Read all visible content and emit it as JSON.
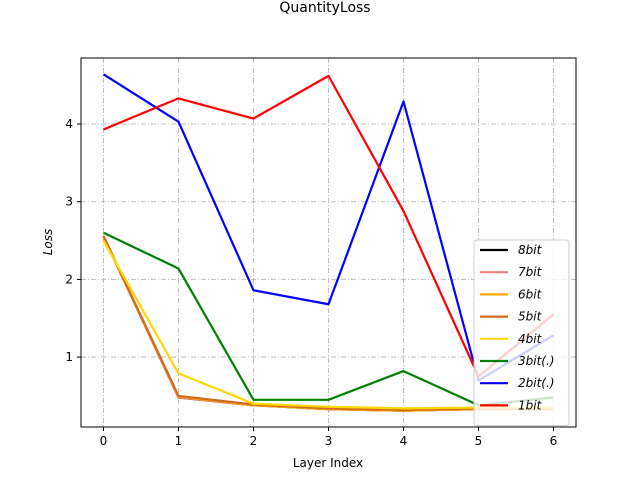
{
  "chart_data": {
    "type": "line",
    "title": "QuantityLoss",
    "xlabel": "Layer Index",
    "ylabel": "Loss",
    "x": [
      0,
      1,
      2,
      3,
      4,
      5,
      6
    ],
    "xlim": [
      -0.3,
      6.3
    ],
    "ylim": [
      0.1,
      4.85
    ],
    "x_ticks": [
      "0",
      "1",
      "2",
      "3",
      "4",
      "5",
      "6"
    ],
    "y_ticks": [
      "1",
      "2",
      "3",
      "4"
    ],
    "grid": true,
    "legend_position": "lower right",
    "series": [
      {
        "name": "8bit",
        "color": "#000000",
        "values": [
          2.55,
          0.48,
          0.38,
          0.33,
          0.31,
          0.33,
          0.33
        ]
      },
      {
        "name": "7bit",
        "color": "#f08080",
        "values": [
          2.55,
          0.48,
          0.38,
          0.33,
          0.31,
          0.33,
          0.33
        ]
      },
      {
        "name": "6bit",
        "color": "#ffa500",
        "values": [
          2.55,
          0.49,
          0.38,
          0.33,
          0.31,
          0.33,
          0.33
        ]
      },
      {
        "name": "5bit",
        "color": "#d2691e",
        "values": [
          2.56,
          0.5,
          0.39,
          0.34,
          0.32,
          0.34,
          0.34
        ]
      },
      {
        "name": "4bit",
        "color": "#ffd700",
        "values": [
          2.5,
          0.79,
          0.4,
          0.36,
          0.34,
          0.35,
          0.35
        ]
      },
      {
        "name": "3bit(.)",
        "color": "#008000",
        "values": [
          2.6,
          2.14,
          0.45,
          0.45,
          0.82,
          0.38,
          0.48
        ]
      },
      {
        "name": "2bit(.)",
        "color": "#0000ff",
        "values": [
          4.64,
          4.03,
          1.86,
          1.68,
          4.29,
          0.7,
          1.28
        ]
      },
      {
        "name": "1bit",
        "color": "#ff0000",
        "values": [
          3.93,
          4.33,
          4.07,
          4.62,
          2.88,
          0.75,
          1.55
        ]
      }
    ]
  }
}
